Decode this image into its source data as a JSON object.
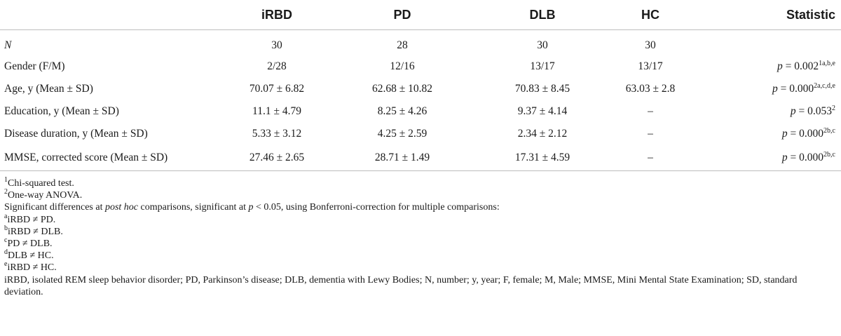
{
  "table": {
    "headers": [
      "",
      "iRBD",
      "PD",
      "DLB",
      "HC",
      "Statistic"
    ],
    "rows": [
      {
        "label": "N",
        "label_italic": true,
        "cells": [
          "30",
          "28",
          "30",
          "30"
        ],
        "stat_p": "",
        "stat_sup": ""
      },
      {
        "label": "Gender (F/M)",
        "label_italic": false,
        "cells": [
          "2/28",
          "12/16",
          "13/17",
          "13/17"
        ],
        "stat_p": "p",
        "stat_val": " = 0.002",
        "stat_sup": "1a,b,e"
      },
      {
        "label": "Age, y (Mean ± SD)",
        "label_italic": false,
        "cells": [
          "70.07 ± 6.82",
          "62.68 ± 10.82",
          "70.83 ± 8.45",
          "63.03 ± 2.8"
        ],
        "stat_p": "p",
        "stat_val": " = 0.000",
        "stat_sup": "2a,c,d,e"
      },
      {
        "label": "Education, y (Mean ± SD)",
        "label_italic": false,
        "cells": [
          "11.1 ± 4.79",
          "8.25 ± 4.26",
          "9.37 ± 4.14",
          "–"
        ],
        "stat_p": "p",
        "stat_val": " = 0.053",
        "stat_sup": "2"
      },
      {
        "label": "Disease duration, y (Mean ± SD)",
        "label_italic": false,
        "cells": [
          "5.33 ± 3.12",
          "4.25 ± 2.59",
          "2.34 ± 2.12",
          "–"
        ],
        "stat_p": "p",
        "stat_val": " = 0.000",
        "stat_sup": "2b,c"
      },
      {
        "label": "MMSE, corrected score (Mean ± SD)",
        "label_italic": false,
        "cells": [
          "27.46 ± 2.65",
          "28.71 ± 1.49",
          "17.31 ± 4.59",
          "–"
        ],
        "stat_p": "p",
        "stat_val": " = 0.000",
        "stat_sup": "2b,c"
      }
    ]
  },
  "notes": {
    "n1_sup": "1",
    "n1_text": "Chi-squared test.",
    "n2_sup": "2",
    "n2_text": "One-way ANOVA.",
    "sig_a": "Significant differences at ",
    "sig_b": "post hoc",
    "sig_c": " comparisons, significant at ",
    "sig_d": "p",
    "sig_e": " < 0.05, using Bonferroni-correction for multiple comparisons:",
    "a_sup": "a",
    "a_text": "iRBD ≠ PD.",
    "b_sup": "b",
    "b_text": "iRBD ≠ DLB.",
    "c_sup": "c",
    "c_text": "PD ≠ DLB.",
    "d_sup": "d",
    "d_text": "DLB ≠ HC.",
    "e_sup": "e",
    "e_text": "iRBD ≠ HC.",
    "abbrev": "iRBD, isolated REM sleep behavior disorder; PD, Parkinson’s disease; DLB, dementia with Lewy Bodies; N, number; y, year; F, female; M, Male; MMSE, Mini Mental State Examination; SD, standard deviation."
  }
}
